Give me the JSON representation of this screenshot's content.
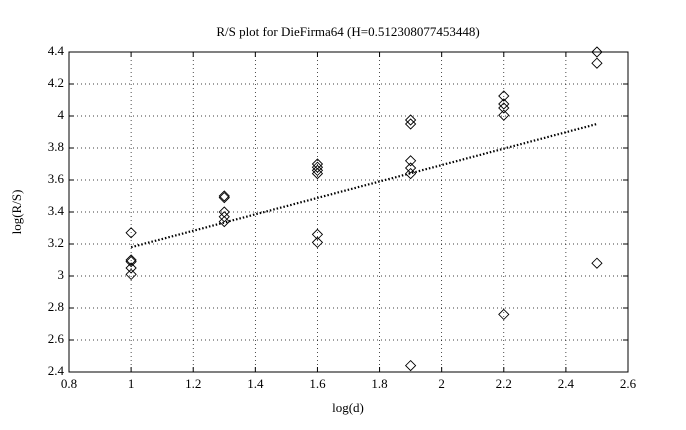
{
  "chart_data": {
    "type": "scatter",
    "title": "R/S plot for DieFirma64 (H=0.512308077453448)",
    "x_label": "log(d)",
    "y_label": "log(R/S)",
    "xlim": [
      0.8,
      2.6
    ],
    "xticks": [
      0.8,
      1,
      1.2,
      1.4,
      1.6,
      1.8,
      2,
      2.2,
      2.4,
      2.6
    ],
    "ylim": [
      2.4,
      4.4
    ],
    "yticks": [
      2.4,
      2.6,
      2.8,
      3,
      3.2,
      3.4,
      3.6,
      3.8,
      4,
      4.2,
      4.4
    ],
    "grid": true,
    "series": [
      {
        "mode": "markers",
        "marker": "diamond",
        "color": "#000000",
        "x": [
          1,
          1,
          1,
          1,
          1,
          1.3,
          1.3,
          1.3,
          1.3,
          1.3,
          1.6,
          1.6,
          1.6,
          1.6,
          1.6,
          1.6,
          1.9,
          1.9,
          1.9,
          1.9,
          1.9,
          1.9,
          2.2,
          2.2,
          2.2,
          2.2,
          2.2,
          2.5,
          2.5,
          2.5
        ],
        "values": [
          3.27,
          3.1,
          3.09,
          3.05,
          3.01,
          3.5,
          3.49,
          3.4,
          3.37,
          3.34,
          3.7,
          3.68,
          3.66,
          3.64,
          3.26,
          3.21,
          3.975,
          3.95,
          3.72,
          3.675,
          3.64,
          2.44,
          4.125,
          4.075,
          4.05,
          4.005,
          2.76,
          4.4,
          4.33,
          3.08
        ]
      },
      {
        "mode": "line",
        "line_style": "dotted",
        "color": "#000000",
        "x": [
          1,
          2.5
        ],
        "values": [
          3.18,
          3.95
        ]
      }
    ]
  }
}
